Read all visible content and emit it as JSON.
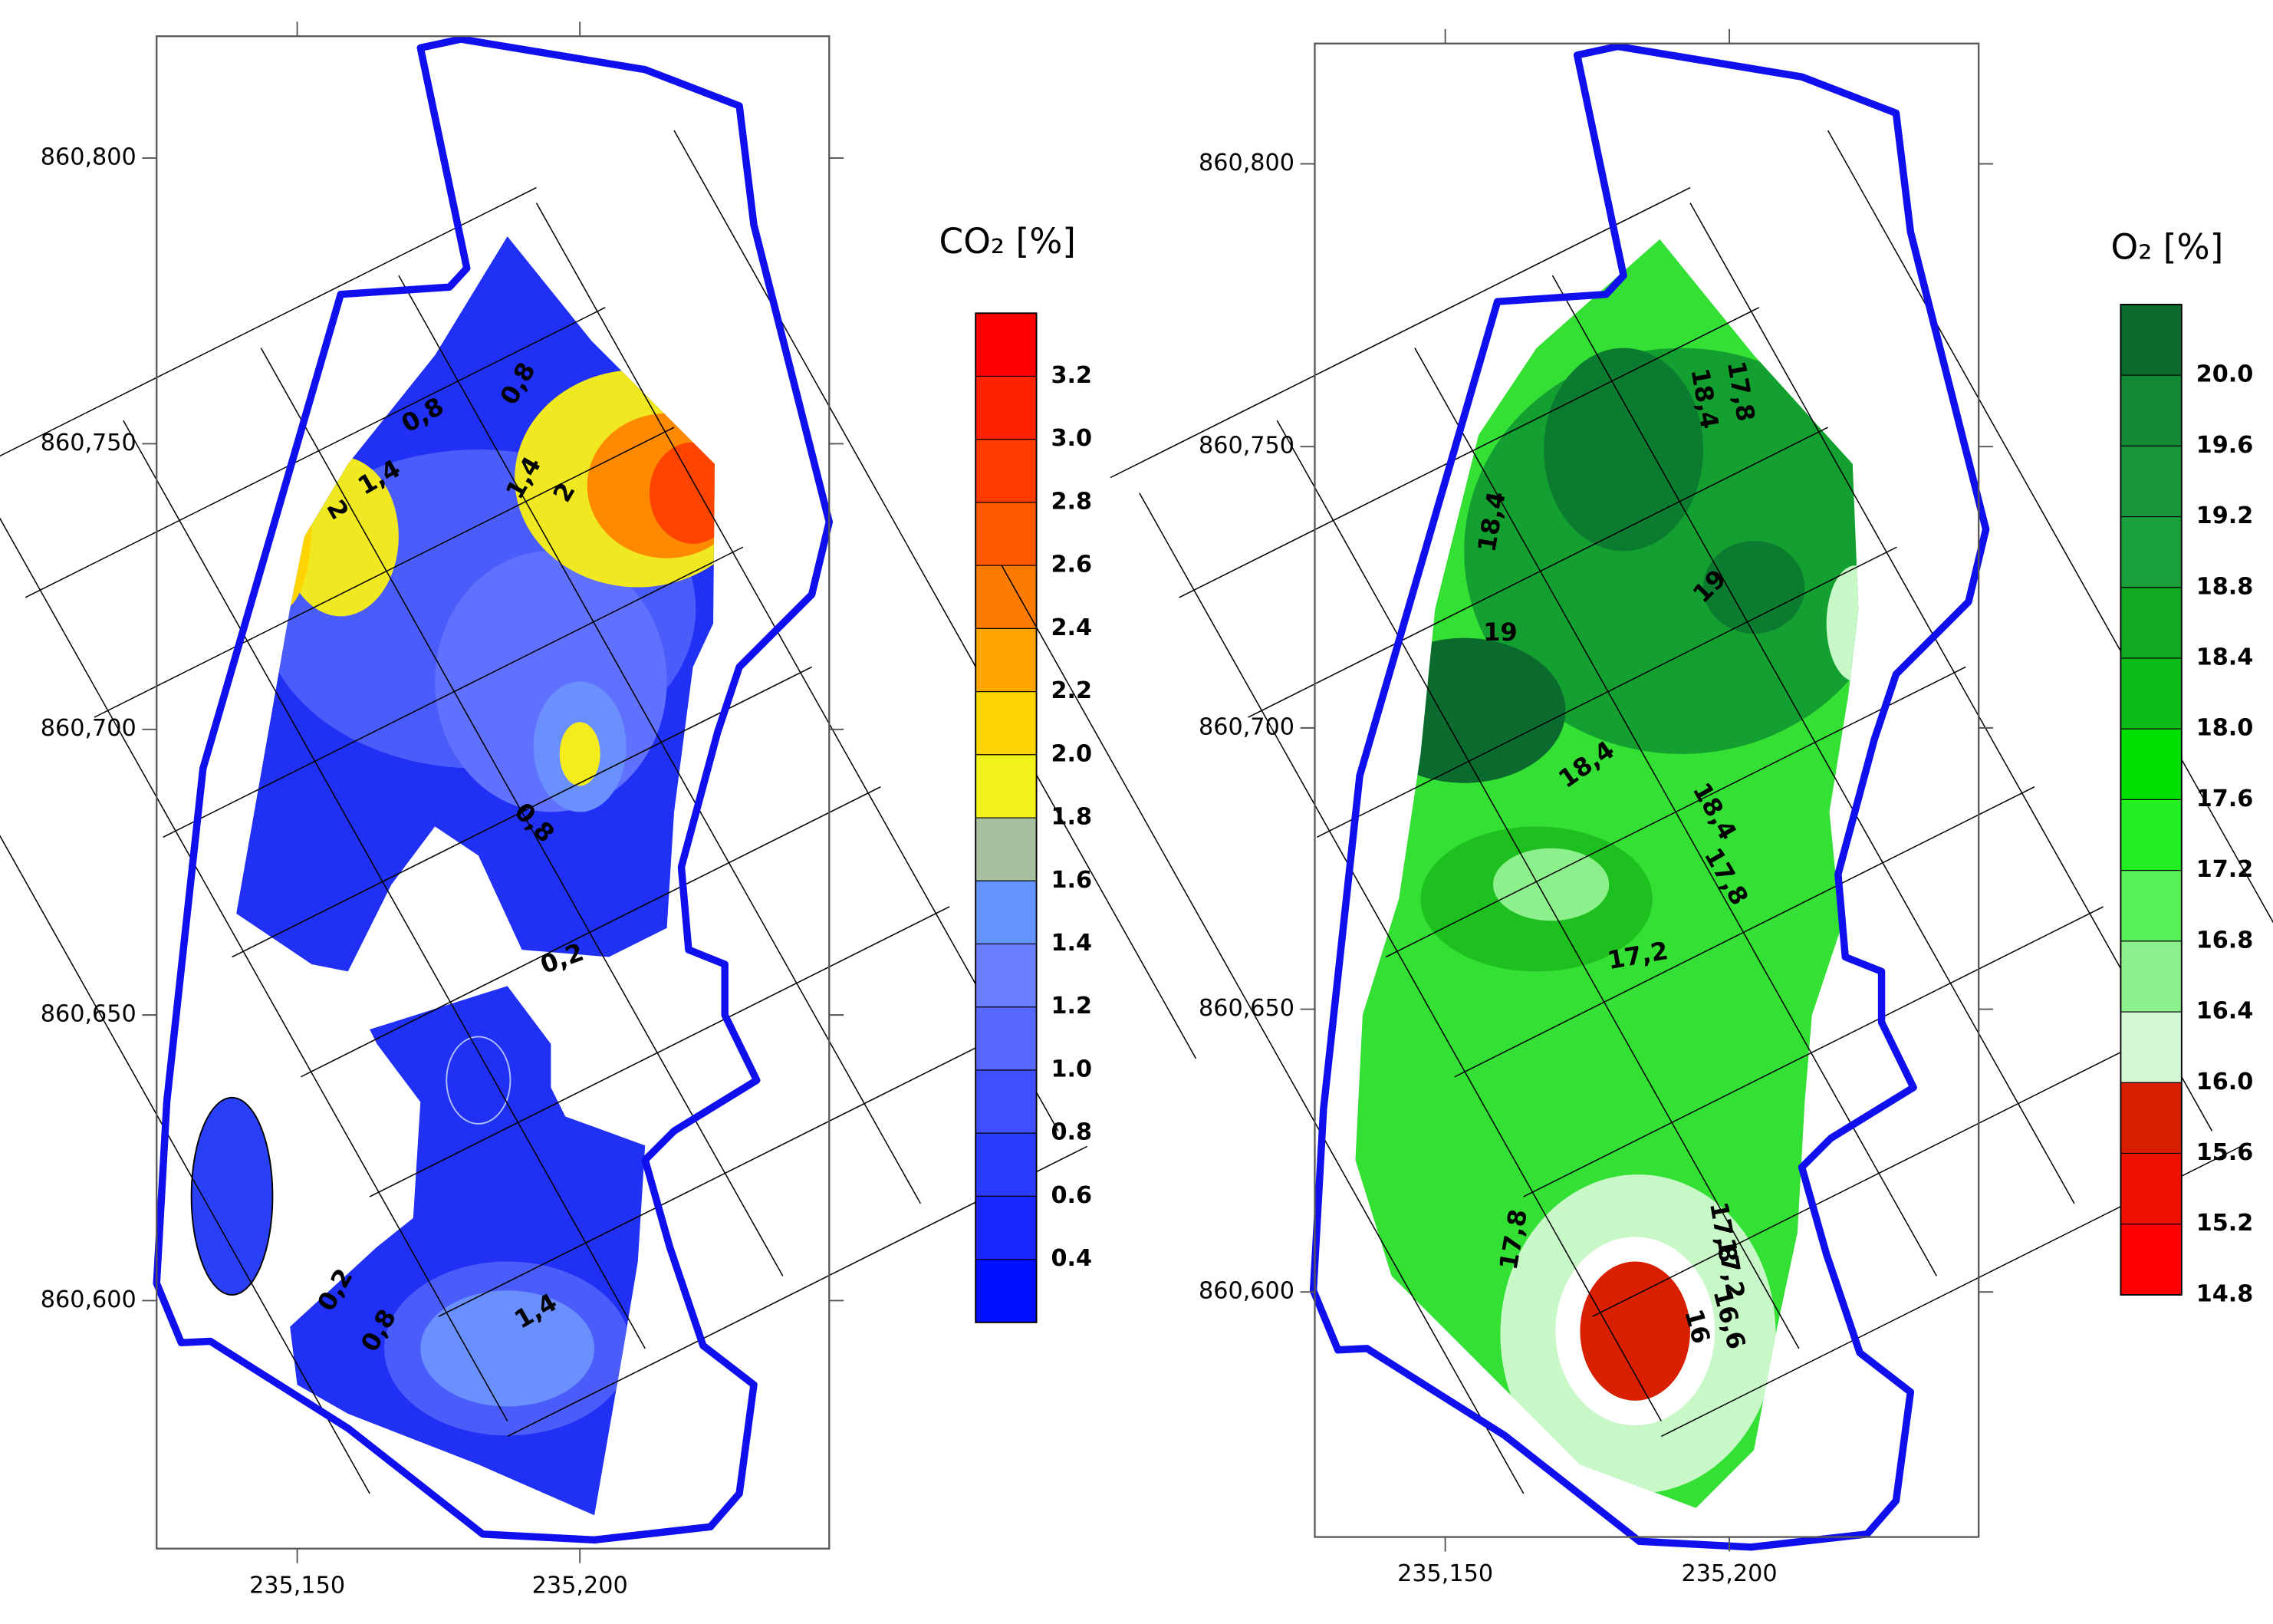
{
  "maps": [
    {
      "title": "CO₂ [%]",
      "x_ticks": [
        "235,150",
        "235,200"
      ],
      "y_ticks": [
        "860,800",
        "860,750",
        "860,700",
        "860,650",
        "860,600"
      ],
      "colorbar_labels": [
        "3.2",
        "3.0",
        "2.8",
        "2.6",
        "2.4",
        "2.2",
        "2.0",
        "1.8",
        "1.6",
        "1.4",
        "1.2",
        "1.0",
        "0.8",
        "0.6",
        "0.4"
      ],
      "colorbar_colors": [
        "#ff0000",
        "#ff2200",
        "#ff3c00",
        "#ff5a00",
        "#ff7a00",
        "#ffa400",
        "#ffd400",
        "#f2f21c",
        "#a6c0a0",
        "#6494ff",
        "#6a80ff",
        "#5868ff",
        "#4050ff",
        "#2a3cff",
        "#1a26ff",
        "#0010ff"
      ],
      "contour_labels": [
        "0,8",
        "0,8",
        "1,4",
        "2",
        "1,4",
        "2",
        "0,8",
        "0,2",
        "0,2",
        "0,8",
        "1,4"
      ]
    },
    {
      "title": "O₂ [%]",
      "x_ticks": [
        "235,150",
        "235,200"
      ],
      "y_ticks": [
        "860,800",
        "860,750",
        "860,700",
        "860,650",
        "860,600"
      ],
      "colorbar_labels": [
        "20.0",
        "19.6",
        "19.2",
        "18.8",
        "18.4",
        "18.0",
        "17.6",
        "17.2",
        "16.8",
        "16.4",
        "16.0",
        "15.6",
        "15.2",
        "14.8"
      ],
      "colorbar_colors": [
        "#0b6b2f",
        "#128a35",
        "#16953a",
        "#1aa03a",
        "#10aa22",
        "#0dbc18",
        "#00e000",
        "#22f022",
        "#58f058",
        "#8cf08c",
        "#d4f8d4",
        "#d82000",
        "#ee1100",
        "#ff0000"
      ],
      "contour_labels": [
        "17,8",
        "18,4",
        "18,4",
        "19",
        "19",
        "18,4",
        "18,4",
        "17,8",
        "17,2",
        "17,8",
        "17,8",
        "17,2",
        "16,6",
        "16"
      ]
    }
  ]
}
